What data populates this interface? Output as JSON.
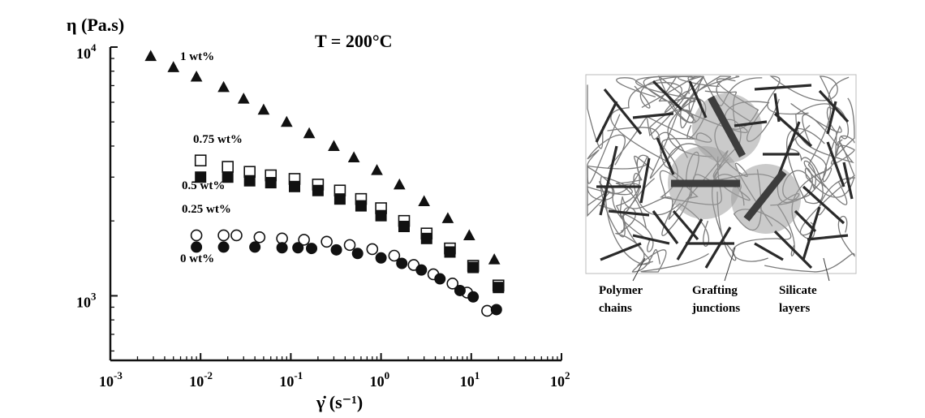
{
  "chart_data": {
    "type": "scatter",
    "title": "T = 200°C",
    "ylabel": "η (Pa.s)",
    "xlabel": "γ̇ (s⁻¹)",
    "xscale": "log",
    "yscale": "log",
    "xlim": [
      0.001,
      100
    ],
    "ylim": [
      550,
      10000
    ],
    "grid": false,
    "x_ticks": [
      {
        "base": "10",
        "exp": "-3",
        "value": 0.001
      },
      {
        "base": "10",
        "exp": "-2",
        "value": 0.01
      },
      {
        "base": "10",
        "exp": "-1",
        "value": 0.1
      },
      {
        "base": "10",
        "exp": "0",
        "value": 1
      },
      {
        "base": "10",
        "exp": "1",
        "value": 10
      },
      {
        "base": "10",
        "exp": "2",
        "value": 100
      }
    ],
    "y_ticks": [
      {
        "base": "10",
        "exp": "4",
        "value": 10000
      },
      {
        "base": "10",
        "exp": "3",
        "value": 1000
      }
    ],
    "series": [
      {
        "name": "1 wt%",
        "marker": "triangle-filled",
        "points": [
          [
            0.0028,
            9200
          ],
          [
            0.005,
            8300
          ],
          [
            0.009,
            7600
          ],
          [
            0.018,
            6900
          ],
          [
            0.03,
            6200
          ],
          [
            0.05,
            5600
          ],
          [
            0.09,
            5000
          ],
          [
            0.16,
            4500
          ],
          [
            0.3,
            4000
          ],
          [
            0.5,
            3600
          ],
          [
            0.9,
            3200
          ],
          [
            1.6,
            2800
          ],
          [
            3.0,
            2400
          ],
          [
            5.5,
            2050
          ],
          [
            9.5,
            1750
          ],
          [
            18,
            1400
          ]
        ]
      },
      {
        "name": "0.75 wt%",
        "marker": "square-open",
        "points": [
          [
            0.01,
            3500
          ],
          [
            0.02,
            3300
          ],
          [
            0.035,
            3150
          ],
          [
            0.06,
            3050
          ],
          [
            0.11,
            2950
          ],
          [
            0.2,
            2800
          ],
          [
            0.35,
            2650
          ],
          [
            0.6,
            2450
          ],
          [
            1.0,
            2250
          ],
          [
            1.8,
            2000
          ],
          [
            3.2,
            1780
          ],
          [
            5.8,
            1550
          ],
          [
            10.5,
            1320
          ],
          [
            20,
            1100
          ]
        ]
      },
      {
        "name": "0.5 wt%",
        "marker": "square-filled",
        "points": [
          [
            0.01,
            3000
          ],
          [
            0.02,
            3000
          ],
          [
            0.035,
            2900
          ],
          [
            0.06,
            2850
          ],
          [
            0.11,
            2750
          ],
          [
            0.2,
            2650
          ],
          [
            0.35,
            2450
          ],
          [
            0.6,
            2300
          ],
          [
            1.0,
            2100
          ],
          [
            1.8,
            1900
          ],
          [
            3.2,
            1700
          ],
          [
            5.8,
            1500
          ],
          [
            10.5,
            1300
          ],
          [
            20,
            1080
          ]
        ]
      },
      {
        "name": "0.25 wt%",
        "marker": "circle-open",
        "points": [
          [
            0.009,
            1750
          ],
          [
            0.018,
            1750
          ],
          [
            0.025,
            1750
          ],
          [
            0.045,
            1720
          ],
          [
            0.08,
            1700
          ],
          [
            0.14,
            1680
          ],
          [
            0.25,
            1650
          ],
          [
            0.45,
            1600
          ],
          [
            0.8,
            1540
          ],
          [
            1.4,
            1450
          ],
          [
            2.3,
            1330
          ],
          [
            3.8,
            1220
          ],
          [
            6.2,
            1120
          ],
          [
            9.0,
            1030
          ],
          [
            15,
            870
          ]
        ]
      },
      {
        "name": "0 wt%",
        "marker": "circle-filled",
        "points": [
          [
            0.009,
            1570
          ],
          [
            0.018,
            1570
          ],
          [
            0.04,
            1570
          ],
          [
            0.08,
            1560
          ],
          [
            0.12,
            1560
          ],
          [
            0.17,
            1550
          ],
          [
            0.32,
            1530
          ],
          [
            0.55,
            1480
          ],
          [
            1.0,
            1420
          ],
          [
            1.7,
            1350
          ],
          [
            2.8,
            1270
          ],
          [
            4.5,
            1170
          ],
          [
            7.5,
            1050
          ],
          [
            10.5,
            990
          ],
          [
            19,
            880
          ]
        ]
      }
    ]
  },
  "diagram": {
    "labels": {
      "polymer": [
        "Polymer",
        "chains"
      ],
      "grafting": [
        "Grafting",
        "junctions"
      ],
      "silicate": [
        "Silicate",
        "layers"
      ]
    }
  }
}
